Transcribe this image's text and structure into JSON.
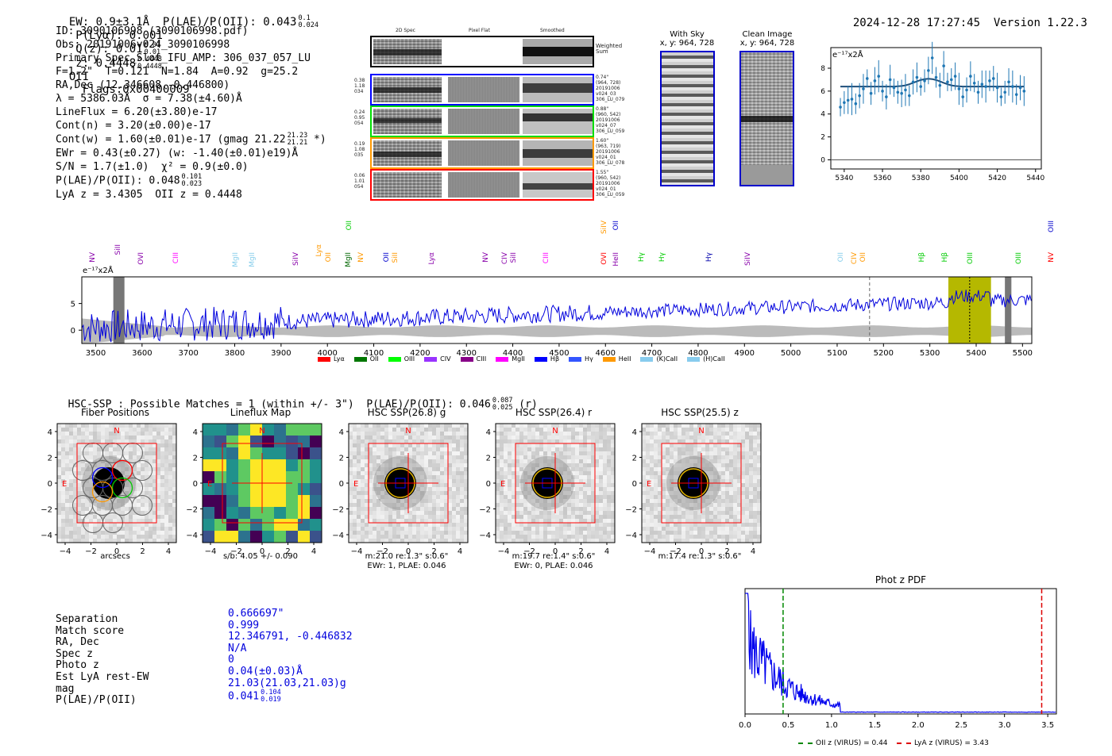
{
  "header": {
    "summary": "EW: 0.9±3.1Å  P(LAE)/P(OII): 0.043",
    "summary_frac_top": "0.1",
    "summary_frac_bot": "0.024",
    "plya": "P(Lyα): 0.001",
    "qz": "Q(z): 0.01",
    "qz_top": "0.01",
    "qz_bot": "0.01",
    "z": "z: 0.4448",
    "z_top": "0.4448",
    "z_bot": "0.4448",
    "z_line": "OII",
    "flags": "Flags:0x00400009",
    "timestamp": "2024-12-28 17:27:45",
    "version": "Version 1.22.3"
  },
  "info": {
    "id": "ID: 3090106998 (3090106998.pdf)",
    "obs": "Obs: 20191006v024_3090106998",
    "slot": "Primary Spec_Slot_IFU_AMP: 306_037_057_LU",
    "fwhm": "F=1.2\"  T=0.121  N=1.84  A=0.92  g=25.2",
    "radec": "RA,Dec (12.346608,-0.446800)",
    "lambda": "λ = 5386.03Å  σ = 7.38(±4.60)Å",
    "lineflux": "LineFlux = 6.20(±3.80)e-17",
    "contn": "Cont(n) = 3.20(±0.00)e-17",
    "contw": "Cont(w) = 1.60(±0.01)e-17 (gmag 21.22",
    "contw_top": "21.23",
    "contw_bot": "21.21",
    "contw_end": " *)",
    "ewr": "EWr = 0.43(±0.27) (w: -1.40(±0.01)e19)Å",
    "sn": "S/N = 1.7(±1.0)  χ² = 0.9(±0.0)",
    "plae": "P(LAE)/P(OII): 0.048",
    "plae_top": "0.101",
    "plae_bot": "0.023",
    "lyaz": "LyA z = 3.4305  OII z = 0.4448"
  },
  "spec2d": {
    "col_headers": [
      "2D Spec",
      "Pixel Flat",
      "Smoothed"
    ],
    "weighted_label": "Weighted\nSum",
    "rows": [
      {
        "left": "0.38\n1.18\n034",
        "right": "0.74\"\n(964, 728)\n20191006\nv024_03\n306_LU_079",
        "color": "#0000ff"
      },
      {
        "left": "0.24\n0.95\n054",
        "right": "0.88\"\n(960, 542)\n20191006\nv024_07\n306_LU_059",
        "color": "#00dd00"
      },
      {
        "left": "0.19\n1.08\n035",
        "right": "1.60\"\n(963, 719)\n20191006\nv024_01\n306_LU_078",
        "color": "#ff9900"
      },
      {
        "left": "0.06\n1.01\n054",
        "right": "1.55\"\n(960, 542)\n20191006\nv024_01\n306_LU_059",
        "color": "#ff0000"
      }
    ]
  },
  "sky": {
    "with_sky_title": "With Sky",
    "with_sky_sub": "x, y: 964, 728",
    "clean_title": "Clean Image",
    "clean_sub": "x, y: 964, 728"
  },
  "zoom_plot": {
    "unit": "e⁻¹⁷x2Å",
    "x_ticks": [
      "5340",
      "5360",
      "5380",
      "5400",
      "5420",
      "5440"
    ],
    "y_ticks": [
      "0",
      "2",
      "4",
      "6",
      "8"
    ],
    "xlim": [
      5333,
      5443
    ],
    "ylim": [
      -0.8,
      9.8
    ]
  },
  "chart_data": [
    {
      "type": "line",
      "title": "Line fit zoom",
      "ylabel": "e-17 x2Å",
      "x": [
        5338,
        5340,
        5342,
        5344,
        5346,
        5348,
        5350,
        5352,
        5354,
        5356,
        5358,
        5360,
        5362,
        5364,
        5366,
        5368,
        5370,
        5372,
        5374,
        5376,
        5378,
        5380,
        5382,
        5384,
        5386,
        5388,
        5390,
        5392,
        5394,
        5396,
        5398,
        5400,
        5402,
        5404,
        5406,
        5408,
        5410,
        5412,
        5414,
        5416,
        5418,
        5420,
        5422,
        5424,
        5426,
        5428,
        5430,
        5432,
        5434
      ],
      "values": [
        4.6,
        5.0,
        5.2,
        5.3,
        4.9,
        5.6,
        6.2,
        7.1,
        5.8,
        6.9,
        7.3,
        6.0,
        5.5,
        7.0,
        6.3,
        5.9,
        5.8,
        6.1,
        5.6,
        6.8,
        7.2,
        6.4,
        6.9,
        7.8,
        8.9,
        7.2,
        6.5,
        8.2,
        6.8,
        7.0,
        7.3,
        6.2,
        5.5,
        6.1,
        7.3,
        6.7,
        5.9,
        6.6,
        6.4,
        6.9,
        7.1,
        6.3,
        5.5,
        5.9,
        6.8,
        6.4,
        5.7,
        6.3,
        6.0
      ],
      "fit": [
        6.4,
        6.4,
        6.4,
        6.4,
        6.4,
        6.4,
        6.4,
        6.4,
        6.4,
        6.4,
        6.4,
        6.4,
        6.4,
        6.4,
        6.4,
        6.42,
        6.45,
        6.5,
        6.6,
        6.72,
        6.85,
        6.97,
        7.05,
        7.08,
        7.05,
        6.97,
        6.85,
        6.72,
        6.6,
        6.5,
        6.45,
        6.42,
        6.4,
        6.4,
        6.4,
        6.4,
        6.4,
        6.4,
        6.4,
        6.4,
        6.4,
        6.4,
        6.4,
        6.4,
        6.4,
        6.4,
        6.4,
        6.4,
        6.4
      ],
      "xlim": [
        5333,
        5443
      ],
      "ylim": [
        -0.8,
        9.8
      ]
    },
    {
      "type": "line",
      "title": "Full spectrum",
      "ylabel": "e-17 x2Å",
      "xlim": [
        3470,
        5520
      ],
      "ylim": [
        -2.5,
        10
      ],
      "x_ticks": [
        3500,
        3600,
        3700,
        3800,
        3900,
        4000,
        4100,
        4200,
        4300,
        4400,
        4500,
        4600,
        4700,
        4800,
        4900,
        5000,
        5100,
        5200,
        5300,
        5400,
        5500
      ],
      "y_ticks": [
        0,
        5
      ],
      "highlight_range": [
        5340,
        5432
      ],
      "line_position": 5386,
      "dashed_line": 5170
    },
    {
      "type": "line",
      "title": "Phot z PDF",
      "xlim": [
        0.0,
        3.6
      ],
      "x_ticks": [
        "0.0",
        "0.5",
        "1.0",
        "1.5",
        "2.0",
        "2.5",
        "3.0",
        "3.5"
      ],
      "oii_z": 0.44,
      "lya_z": 3.43
    }
  ],
  "spectrum_lines": [
    {
      "label": "NV",
      "wave": 3495,
      "color": "#8800aa",
      "row": 0
    },
    {
      "label": "SiII",
      "wave": 3550,
      "color": "#8800aa",
      "row": 1
    },
    {
      "label": "OVI",
      "wave": 3600,
      "color": "#8800aa",
      "row": 0
    },
    {
      "label": "CIII",
      "wave": 3675,
      "color": "#ff00ff",
      "row": 0
    },
    {
      "label": "MgII",
      "wave": 3805,
      "color": "#87ceeb",
      "row": 0
    },
    {
      "label": "MgII",
      "wave": 3840,
      "color": "#87ceeb",
      "row": 0
    },
    {
      "label": "SiIV",
      "wave": 3935,
      "color": "#8800aa",
      "row": 0
    },
    {
      "label": "Lyα",
      "wave": 3985,
      "color": "#ff9900",
      "row": 1
    },
    {
      "label": "OII",
      "wave": 4005,
      "color": "#ff9900",
      "row": 0
    },
    {
      "label": "MgII",
      "wave": 4048,
      "color": "#006600",
      "row": 0
    },
    {
      "label": "OII",
      "wave": 4050,
      "color": "#00cc00",
      "row": 2
    },
    {
      "label": "NV",
      "wave": 4075,
      "color": "#ff9900",
      "row": 0
    },
    {
      "label": "OII",
      "wave": 4130,
      "color": "#0000cc",
      "row": 0
    },
    {
      "label": "SiII",
      "wave": 4148,
      "color": "#ff9900",
      "row": 0
    },
    {
      "label": "Lyα",
      "wave": 4228,
      "color": "#8800aa",
      "row": 0
    },
    {
      "label": "NV",
      "wave": 4345,
      "color": "#8800aa",
      "row": 0
    },
    {
      "label": "CIV",
      "wave": 4385,
      "color": "#8800aa",
      "row": 0
    },
    {
      "label": "SiII",
      "wave": 4405,
      "color": "#8800aa",
      "row": 0
    },
    {
      "label": "CIII",
      "wave": 4475,
      "color": "#ff00ff",
      "row": 0
    },
    {
      "label": "OVI",
      "wave": 4600,
      "color": "#ff0000",
      "row": 0
    },
    {
      "label": "SiIV",
      "wave": 4600,
      "color": "#ff9900",
      "row": 2
    },
    {
      "label": "HeII",
      "wave": 4625,
      "color": "#8800aa",
      "row": 0
    },
    {
      "label": "OII",
      "wave": 4625,
      "color": "#0000cc",
      "row": 2
    },
    {
      "label": "Hγ",
      "wave": 4680,
      "color": "#00cc00",
      "row": 0
    },
    {
      "label": "Hγ",
      "wave": 4725,
      "color": "#00cc00",
      "row": 0
    },
    {
      "label": "Hγ",
      "wave": 4825,
      "color": "#0000aa",
      "row": 0
    },
    {
      "label": "SiIV",
      "wave": 4910,
      "color": "#8800aa",
      "row": 0
    },
    {
      "label": "OII",
      "wave": 5110,
      "color": "#87ceeb",
      "row": 0
    },
    {
      "label": "CIV",
      "wave": 5140,
      "color": "#ff9900",
      "row": 0
    },
    {
      "label": "OII",
      "wave": 5158,
      "color": "#ff9900",
      "row": 0
    },
    {
      "label": "Hβ",
      "wave": 5285,
      "color": "#00cc00",
      "row": 0
    },
    {
      "label": "Hβ",
      "wave": 5335,
      "color": "#00cc00",
      "row": 0
    },
    {
      "label": "OIII",
      "wave": 5390,
      "color": "#00cc00",
      "row": 0
    },
    {
      "label": "OIII",
      "wave": 5494,
      "color": "#00cc00",
      "row": 0
    },
    {
      "label": "NV",
      "wave": 5565,
      "color": "#ff0000",
      "row": 0
    },
    {
      "label": "OIII",
      "wave": 5565,
      "color": "#0000cc",
      "row": 2
    }
  ],
  "legend": [
    {
      "label": "Lyα",
      "color": "#ff0000"
    },
    {
      "label": "OII",
      "color": "#007700"
    },
    {
      "label": "OIII",
      "color": "#00ff00"
    },
    {
      "label": "CIV",
      "color": "#9933ff"
    },
    {
      "label": "CIII",
      "color": "#880088"
    },
    {
      "label": "MgII",
      "color": "#ff00ff"
    },
    {
      "label": "Hβ",
      "color": "#0000ff"
    },
    {
      "label": "Hγ",
      "color": "#3355ff"
    },
    {
      "label": "HeII",
      "color": "#ff9900"
    },
    {
      "label": "(K)CaII",
      "color": "#88ccee"
    },
    {
      "label": "(H)CaII",
      "color": "#88ccee"
    }
  ],
  "hsc": {
    "line": "HSC-SSP : Possible Matches = 1 (within +/- 3\")  P(LAE)/P(OII): 0.046",
    "frac_top": "0.087",
    "frac_bot": "0.025",
    "suffix": "(r)"
  },
  "cutouts": [
    {
      "title": "Fiber Positions",
      "caption": "arcsecs",
      "caption2": ""
    },
    {
      "title": "Lineflux Map",
      "caption": "s/b: 4.05 +/- 0.090",
      "caption2": ""
    },
    {
      "title": "HSC SSP(26.8) g",
      "caption": "m:21.0  re:1.3\"  s:0.6\"",
      "caption2": "EWr: 1, PLAE: 0.046"
    },
    {
      "title": "HSC SSP(26.4) r",
      "caption": "m:19.7  re:1.4\"  s:0.6\"",
      "caption2": "EWr: 0, PLAE: 0.046"
    },
    {
      "title": "HSC SSP(25.5) z",
      "caption": "m:17.4  re:1.3\"  s:0.6\"",
      "caption2": ""
    }
  ],
  "cutout_axes": {
    "y_ticks": [
      "4",
      "2",
      "0",
      "−2",
      "−4"
    ],
    "x_ticks": [
      "−4",
      "−2",
      "0",
      "2",
      "4"
    ],
    "north": "N",
    "east": "E"
  },
  "match_table": {
    "labels": [
      "Separation",
      "Match score",
      "RA, Dec",
      "Spec z",
      "Photo z",
      "Est LyA rest-EW",
      "mag",
      "P(LAE)/P(OII)"
    ],
    "values": [
      "0.666697\"",
      "0.999",
      "12.346791, -0.446832",
      "N/A",
      "0",
      "0.04(±0.03)Å",
      "21.03(21.03,21.03)g",
      "0.041"
    ],
    "plae_top": "0.104",
    "plae_bot": "0.019"
  },
  "photz": {
    "title": "Phot z PDF",
    "oii_legend": "OII z (VIRUS) = 0.44",
    "lya_legend": "LyA z (VIRUS) = 3.43",
    "oii_color": "#008800",
    "lya_color": "#dd0000"
  }
}
